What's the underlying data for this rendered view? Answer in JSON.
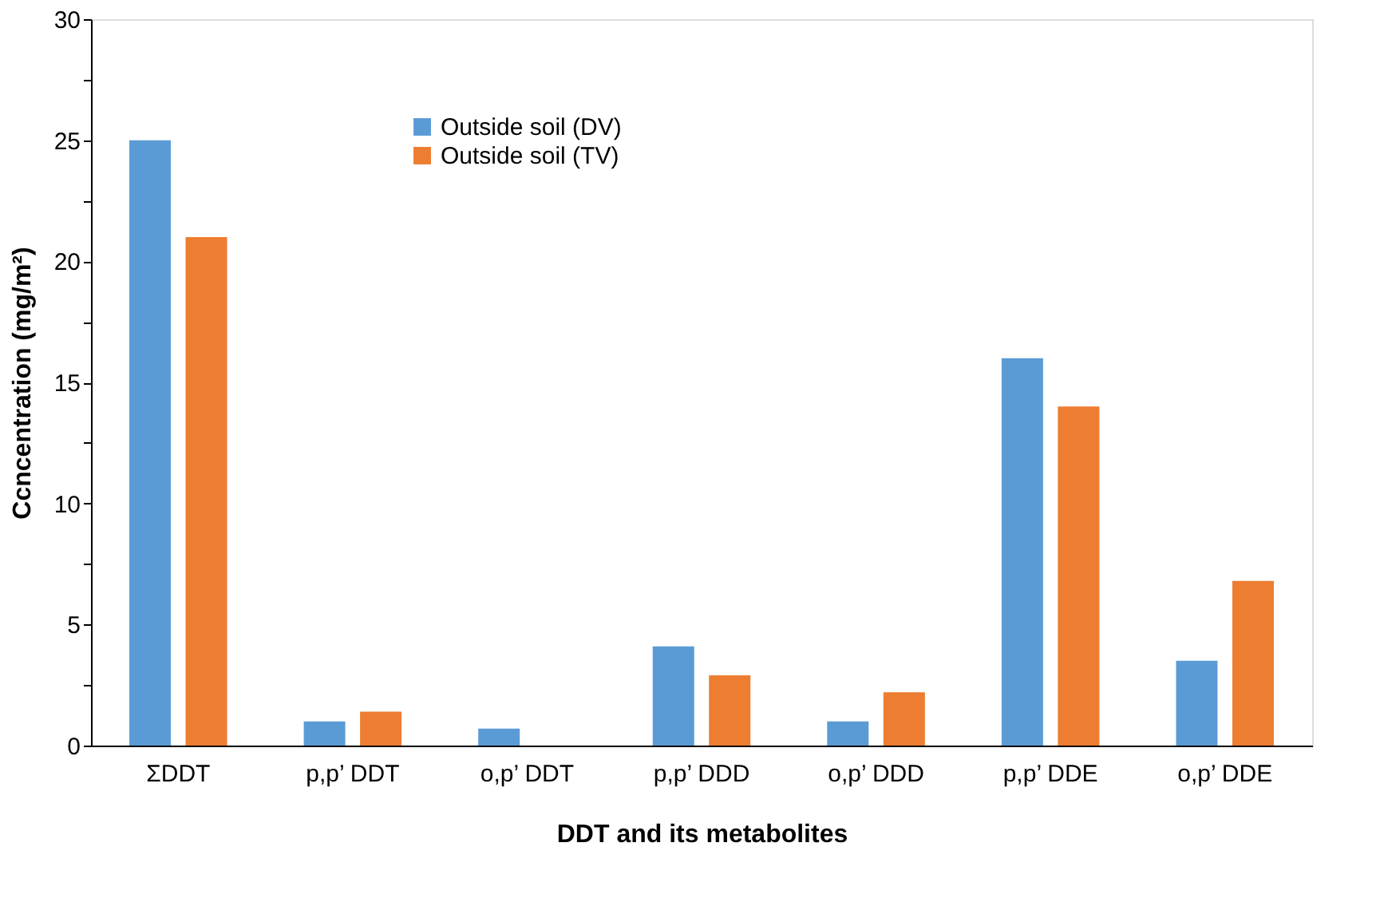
{
  "chart_data": {
    "type": "bar",
    "xlabel": "DDT and its metabolites",
    "ylabel": "Ccncentration (mg/m²)",
    "categories": [
      "ΣDDT",
      "p,p’ DDT",
      "o,p’ DDT",
      "p,p’ DDD",
      "o,p’ DDD",
      "p,p’ DDE",
      "o,p’ DDE"
    ],
    "series": [
      {
        "name": "Outside soil (DV)",
        "color": "#5b9bd5",
        "values": [
          25,
          1.0,
          0.7,
          4.1,
          1.0,
          16,
          3.5
        ]
      },
      {
        "name": "Outside soil (TV)",
        "color": "#ed7d31",
        "values": [
          21,
          1.4,
          null,
          2.9,
          2.2,
          14,
          6.8
        ]
      }
    ],
    "ylim": [
      0,
      30
    ],
    "yticks": [
      0,
      {
        "value": 2.5,
        "label": null
      },
      5,
      {
        "value": 7.5,
        "label": null
      },
      10,
      {
        "value": 12.5,
        "label": null
      },
      15,
      {
        "value": 17.5,
        "label": null
      },
      20,
      {
        "value": 22.5,
        "label": null
      },
      25,
      {
        "value": 27.5,
        "label": null
      },
      30
    ],
    "grid": false,
    "legend": "top"
  }
}
